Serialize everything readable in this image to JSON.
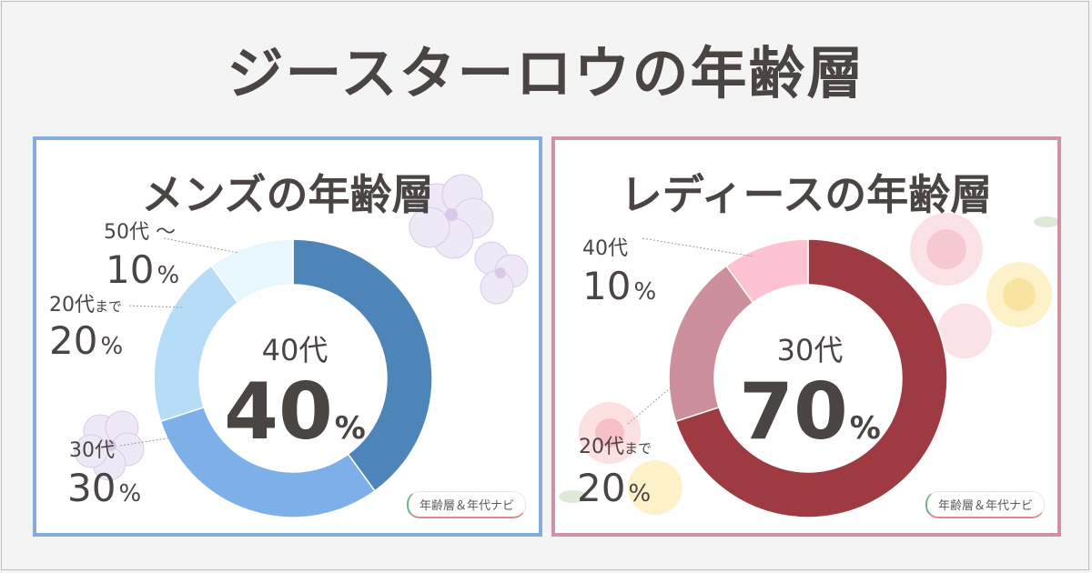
{
  "title": "ジースターロウの年齢層",
  "chart_data": [
    {
      "type": "pie",
      "title": "メンズの年齢層",
      "center_label": "40代",
      "center_value": "40",
      "center_unit": "%",
      "slices": [
        {
          "label": "40代",
          "value": 40,
          "color": "#4e85b9"
        },
        {
          "label": "30代",
          "value": 30,
          "color": "#7db0e8"
        },
        {
          "label": "20代まで",
          "value": 20,
          "color": "#b6dcf8"
        },
        {
          "label": "50代～",
          "value": 10,
          "color": "#e8f6fd"
        }
      ]
    },
    {
      "type": "pie",
      "title": "レディースの年齢層",
      "center_label": "30代",
      "center_value": "70",
      "center_unit": "%",
      "slices": [
        {
          "label": "30代",
          "value": 70,
          "color": "#9e3a42"
        },
        {
          "label": "20代まで",
          "value": 20,
          "color": "#ce8f9c"
        },
        {
          "label": "40代",
          "value": 10,
          "color": "#fdc3d3"
        }
      ]
    }
  ],
  "outer_labels": {
    "men": [
      {
        "name": "50代",
        "suffix": " ～",
        "value": "10"
      },
      {
        "name": "20代",
        "suffix": "まで",
        "value": "20"
      },
      {
        "name": "30代",
        "suffix": "",
        "value": "30"
      }
    ],
    "women": [
      {
        "name": "40代",
        "suffix": "",
        "value": "10"
      },
      {
        "name": "20代",
        "suffix": "まで",
        "value": "20"
      }
    ]
  },
  "percent_sign": "%",
  "badge": "年齢層＆年代ナビ"
}
